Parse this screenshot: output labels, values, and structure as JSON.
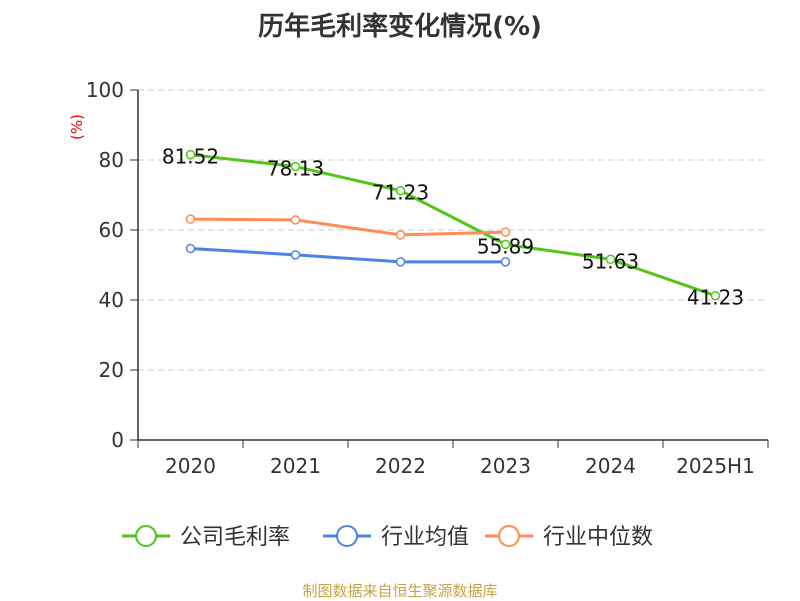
{
  "chart_data": {
    "type": "line",
    "title": "历年毛利率变化情况(%)",
    "ylabel": "(%)",
    "xlabel": "",
    "ylim": [
      0,
      100
    ],
    "yticks": [
      0,
      20,
      40,
      60,
      80,
      100
    ],
    "grid": true,
    "legend_position": "bottom",
    "categories": [
      "2020",
      "2021",
      "2022",
      "2023",
      "2024",
      "2025H1"
    ],
    "series": [
      {
        "name": "公司毛利率",
        "color": "#52c41a",
        "values": [
          81.52,
          78.13,
          71.23,
          55.89,
          51.63,
          41.23
        ],
        "labels": [
          "81.52",
          "78.13",
          "71.23",
          "55.89",
          "51.63",
          "41.23"
        ]
      },
      {
        "name": "行业均值",
        "color": "#4e82e4",
        "values": [
          54.7,
          52.9,
          50.9,
          50.9,
          null,
          null
        ]
      },
      {
        "name": "行业中位数",
        "color": "#ff8c55",
        "values": [
          63.1,
          62.9,
          58.6,
          59.4,
          null,
          null
        ]
      }
    ]
  },
  "source": "制图数据来自恒生聚源数据库"
}
